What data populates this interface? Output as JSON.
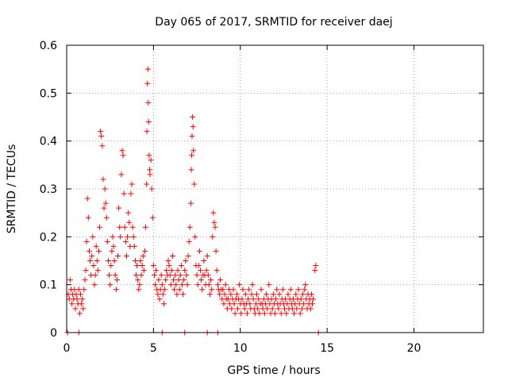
{
  "chart_data": {
    "type": "scatter",
    "title": "Day 065 of 2017, SRMTID for receiver daej",
    "xlabel": "GPS time / hours",
    "ylabel": "SRMTID / TECUs",
    "xlim": [
      0,
      24
    ],
    "ylim": [
      0,
      0.6
    ],
    "xticks": [
      0,
      5,
      10,
      15,
      20
    ],
    "xtick_labels": [
      "0",
      "5",
      "10",
      "15",
      "20"
    ],
    "yticks": [
      0,
      0.1,
      0.2,
      0.3,
      0.4,
      0.5,
      0.6
    ],
    "ytick_labels": [
      "0",
      "0.1",
      "0.2",
      "0.3",
      "0.4",
      "0.5",
      "0.6"
    ],
    "grid": true,
    "marker": "+",
    "color": "#ff0000",
    "series": [
      {
        "name": "SRMTID",
        "points": [
          [
            0.1,
            0.08
          ],
          [
            0.15,
            0.07
          ],
          [
            0.2,
            0.11
          ],
          [
            0.25,
            0.09
          ],
          [
            0.3,
            0.06
          ],
          [
            0.35,
            0.08
          ],
          [
            0.4,
            0.07
          ],
          [
            0.45,
            0.09
          ],
          [
            0.5,
            0.05
          ],
          [
            0.55,
            0.08
          ],
          [
            0.6,
            0.07
          ],
          [
            0.65,
            0.06
          ],
          [
            0.7,
            0.09
          ],
          [
            0.75,
            0.04
          ],
          [
            0.8,
            0.08
          ],
          [
            0.85,
            0.06
          ],
          [
            0.9,
            0.07
          ],
          [
            0.95,
            0.05
          ],
          [
            1.0,
            0.09
          ],
          [
            1.05,
            0.11
          ],
          [
            1.1,
            0.13
          ],
          [
            1.15,
            0.19
          ],
          [
            1.2,
            0.28
          ],
          [
            1.25,
            0.24
          ],
          [
            1.3,
            0.17
          ],
          [
            1.35,
            0.15
          ],
          [
            1.4,
            0.12
          ],
          [
            1.45,
            0.16
          ],
          [
            1.5,
            0.2
          ],
          [
            1.55,
            0.14
          ],
          [
            1.6,
            0.1
          ],
          [
            1.65,
            0.12
          ],
          [
            1.7,
            0.18
          ],
          [
            1.75,
            0.15
          ],
          [
            1.8,
            0.13
          ],
          [
            1.85,
            0.17
          ],
          [
            1.9,
            0.22
          ],
          [
            1.95,
            0.42
          ],
          [
            2.0,
            0.41
          ],
          [
            2.05,
            0.39
          ],
          [
            2.1,
            0.32
          ],
          [
            2.15,
            0.26
          ],
          [
            2.2,
            0.3
          ],
          [
            2.25,
            0.27
          ],
          [
            2.3,
            0.24
          ],
          [
            2.35,
            0.19
          ],
          [
            2.4,
            0.15
          ],
          [
            2.45,
            0.12
          ],
          [
            2.5,
            0.1
          ],
          [
            2.55,
            0.14
          ],
          [
            2.6,
            0.17
          ],
          [
            2.65,
            0.2
          ],
          [
            2.7,
            0.18
          ],
          [
            2.75,
            0.15
          ],
          [
            2.8,
            0.12
          ],
          [
            2.85,
            0.09
          ],
          [
            2.9,
            0.11
          ],
          [
            2.95,
            0.16
          ],
          [
            3.0,
            0.26
          ],
          [
            3.05,
            0.22
          ],
          [
            3.1,
            0.2
          ],
          [
            3.15,
            0.33
          ],
          [
            3.2,
            0.38
          ],
          [
            3.25,
            0.37
          ],
          [
            3.3,
            0.29
          ],
          [
            3.35,
            0.22
          ],
          [
            3.4,
            0.19
          ],
          [
            3.45,
            0.16
          ],
          [
            3.5,
            0.2
          ],
          [
            3.55,
            0.25
          ],
          [
            3.6,
            0.23
          ],
          [
            3.65,
            0.18
          ],
          [
            3.7,
            0.29
          ],
          [
            3.75,
            0.31
          ],
          [
            3.8,
            0.22
          ],
          [
            3.85,
            0.2
          ],
          [
            3.9,
            0.18
          ],
          [
            3.95,
            0.15
          ],
          [
            4.0,
            0.12
          ],
          [
            4.05,
            0.14
          ],
          [
            4.1,
            0.11
          ],
          [
            4.15,
            0.09
          ],
          [
            4.2,
            0.1
          ],
          [
            4.25,
            0.15
          ],
          [
            4.3,
            0.12
          ],
          [
            4.35,
            0.14
          ],
          [
            4.4,
            0.16
          ],
          [
            4.45,
            0.13
          ],
          [
            4.5,
            0.17
          ],
          [
            4.55,
            0.22
          ],
          [
            4.6,
            0.31
          ],
          [
            4.62,
            0.42
          ],
          [
            4.65,
            0.52
          ],
          [
            4.68,
            0.55
          ],
          [
            4.7,
            0.48
          ],
          [
            4.72,
            0.44
          ],
          [
            4.75,
            0.37
          ],
          [
            4.78,
            0.34
          ],
          [
            4.8,
            0.33
          ],
          [
            4.85,
            0.36
          ],
          [
            4.9,
            0.3
          ],
          [
            4.95,
            0.24
          ],
          [
            5.0,
            0.14
          ],
          [
            5.05,
            0.12
          ],
          [
            5.1,
            0.1
          ],
          [
            5.15,
            0.13
          ],
          [
            5.2,
            0.09
          ],
          [
            5.25,
            0.08
          ],
          [
            5.3,
            0.11
          ],
          [
            5.35,
            0.07
          ],
          [
            5.4,
            0.09
          ],
          [
            5.45,
            0.12
          ],
          [
            5.5,
            0.1
          ],
          [
            5.55,
            0.08
          ],
          [
            5.6,
            0.06
          ],
          [
            5.65,
            0.09
          ],
          [
            5.7,
            0.11
          ],
          [
            5.75,
            0.13
          ],
          [
            5.8,
            0.12
          ],
          [
            5.85,
            0.15
          ],
          [
            5.9,
            0.14
          ],
          [
            5.95,
            0.12
          ],
          [
            6.0,
            0.1
          ],
          [
            6.05,
            0.13
          ],
          [
            6.1,
            0.16
          ],
          [
            6.15,
            0.11
          ],
          [
            6.2,
            0.09
          ],
          [
            6.25,
            0.12
          ],
          [
            6.3,
            0.1
          ],
          [
            6.35,
            0.08
          ],
          [
            6.4,
            0.13
          ],
          [
            6.45,
            0.11
          ],
          [
            6.5,
            0.09
          ],
          [
            6.55,
            0.12
          ],
          [
            6.6,
            0.14
          ],
          [
            6.65,
            0.1
          ],
          [
            6.7,
            0.08
          ],
          [
            6.75,
            0.11
          ],
          [
            6.8,
            0.13
          ],
          [
            6.85,
            0.15
          ],
          [
            6.9,
            0.12
          ],
          [
            6.95,
            0.1
          ],
          [
            7.0,
            0.16
          ],
          [
            7.05,
            0.19
          ],
          [
            7.1,
            0.22
          ],
          [
            7.15,
            0.27
          ],
          [
            7.18,
            0.34
          ],
          [
            7.2,
            0.37
          ],
          [
            7.22,
            0.41
          ],
          [
            7.25,
            0.45
          ],
          [
            7.28,
            0.43
          ],
          [
            7.3,
            0.38
          ],
          [
            7.35,
            0.31
          ],
          [
            7.4,
            0.2
          ],
          [
            7.45,
            0.14
          ],
          [
            7.5,
            0.12
          ],
          [
            7.55,
            0.1
          ],
          [
            7.6,
            0.14
          ],
          [
            7.65,
            0.17
          ],
          [
            7.7,
            0.13
          ],
          [
            7.75,
            0.11
          ],
          [
            7.8,
            0.09
          ],
          [
            7.85,
            0.12
          ],
          [
            7.9,
            0.15
          ],
          [
            7.95,
            0.12
          ],
          [
            8.0,
            0.1
          ],
          [
            8.05,
            0.13
          ],
          [
            8.1,
            0.16
          ],
          [
            8.15,
            0.12
          ],
          [
            8.2,
            0.1
          ],
          [
            8.25,
            0.08
          ],
          [
            8.3,
            0.11
          ],
          [
            8.35,
            0.09
          ],
          [
            8.4,
            0.2
          ],
          [
            8.45,
            0.25
          ],
          [
            8.5,
            0.23
          ],
          [
            8.55,
            0.22
          ],
          [
            8.6,
            0.17
          ],
          [
            8.65,
            0.13
          ],
          [
            8.7,
            0.1
          ],
          [
            8.75,
            0.09
          ],
          [
            8.8,
            0.08
          ],
          [
            8.85,
            0.11
          ],
          [
            8.9,
            0.09
          ],
          [
            8.95,
            0.07
          ],
          [
            9.0,
            0.09
          ],
          [
            9.05,
            0.06
          ],
          [
            9.1,
            0.08
          ],
          [
            9.15,
            0.1
          ],
          [
            9.2,
            0.07
          ],
          [
            9.25,
            0.05
          ],
          [
            9.3,
            0.07
          ],
          [
            9.35,
            0.09
          ],
          [
            9.4,
            0.06
          ],
          [
            9.45,
            0.08
          ],
          [
            9.5,
            0.05
          ],
          [
            9.55,
            0.07
          ],
          [
            9.6,
            0.09
          ],
          [
            9.65,
            0.06
          ],
          [
            9.7,
            0.04
          ],
          [
            9.75,
            0.07
          ],
          [
            9.8,
            0.08
          ],
          [
            9.85,
            0.05
          ],
          [
            9.9,
            0.07
          ],
          [
            9.95,
            0.1
          ],
          [
            10.0,
            0.06
          ],
          [
            10.05,
            0.04
          ],
          [
            10.1,
            0.07
          ],
          [
            10.15,
            0.09
          ],
          [
            10.2,
            0.06
          ],
          [
            10.25,
            0.05
          ],
          [
            10.3,
            0.08
          ],
          [
            10.35,
            0.06
          ],
          [
            10.4,
            0.04
          ],
          [
            10.45,
            0.07
          ],
          [
            10.5,
            0.09
          ],
          [
            10.55,
            0.06
          ],
          [
            10.6,
            0.05
          ],
          [
            10.65,
            0.08
          ],
          [
            10.7,
            0.1
          ],
          [
            10.75,
            0.07
          ],
          [
            10.8,
            0.05
          ],
          [
            10.85,
            0.04
          ],
          [
            10.9,
            0.06
          ],
          [
            10.95,
            0.08
          ],
          [
            11.0,
            0.05
          ],
          [
            11.05,
            0.07
          ],
          [
            11.1,
            0.04
          ],
          [
            11.15,
            0.06
          ],
          [
            11.2,
            0.09
          ],
          [
            11.25,
            0.06
          ],
          [
            11.3,
            0.05
          ],
          [
            11.35,
            0.07
          ],
          [
            11.4,
            0.04
          ],
          [
            11.45,
            0.06
          ],
          [
            11.5,
            0.08
          ],
          [
            11.55,
            0.05
          ],
          [
            11.6,
            0.07
          ],
          [
            11.65,
            0.1
          ],
          [
            11.7,
            0.06
          ],
          [
            11.75,
            0.04
          ],
          [
            11.8,
            0.07
          ],
          [
            11.85,
            0.05
          ],
          [
            11.9,
            0.08
          ],
          [
            11.95,
            0.06
          ],
          [
            12.0,
            0.04
          ],
          [
            12.05,
            0.07
          ],
          [
            12.1,
            0.09
          ],
          [
            12.15,
            0.06
          ],
          [
            12.2,
            0.05
          ],
          [
            12.25,
            0.08
          ],
          [
            12.3,
            0.06
          ],
          [
            12.35,
            0.04
          ],
          [
            12.4,
            0.07
          ],
          [
            12.45,
            0.09
          ],
          [
            12.5,
            0.06
          ],
          [
            12.55,
            0.05
          ],
          [
            12.6,
            0.07
          ],
          [
            12.65,
            0.04
          ],
          [
            12.7,
            0.06
          ],
          [
            12.75,
            0.08
          ],
          [
            12.8,
            0.05
          ],
          [
            12.85,
            0.07
          ],
          [
            12.9,
            0.09
          ],
          [
            12.95,
            0.06
          ],
          [
            13.0,
            0.05
          ],
          [
            13.05,
            0.07
          ],
          [
            13.1,
            0.04
          ],
          [
            13.15,
            0.06
          ],
          [
            13.2,
            0.08
          ],
          [
            13.25,
            0.05
          ],
          [
            13.3,
            0.07
          ],
          [
            13.35,
            0.09
          ],
          [
            13.4,
            0.06
          ],
          [
            13.45,
            0.04
          ],
          [
            13.5,
            0.07
          ],
          [
            13.55,
            0.05
          ],
          [
            13.6,
            0.08
          ],
          [
            13.65,
            0.06
          ],
          [
            13.7,
            0.09
          ],
          [
            13.75,
            0.1
          ],
          [
            13.8,
            0.07
          ],
          [
            13.85,
            0.05
          ],
          [
            13.9,
            0.08
          ],
          [
            13.95,
            0.06
          ],
          [
            14.0,
            0.07
          ],
          [
            14.05,
            0.05
          ],
          [
            14.1,
            0.08
          ],
          [
            14.15,
            0.06
          ],
          [
            14.2,
            0.07
          ],
          [
            14.3,
            0.13
          ],
          [
            14.35,
            0.14
          ],
          [
            0.05,
            0.0
          ],
          [
            0.7,
            0.0
          ],
          [
            5.5,
            0.0
          ],
          [
            6.8,
            0.0
          ],
          [
            8.1,
            0.0
          ],
          [
            8.7,
            0.0
          ],
          [
            14.5,
            0.0
          ]
        ]
      }
    ]
  }
}
